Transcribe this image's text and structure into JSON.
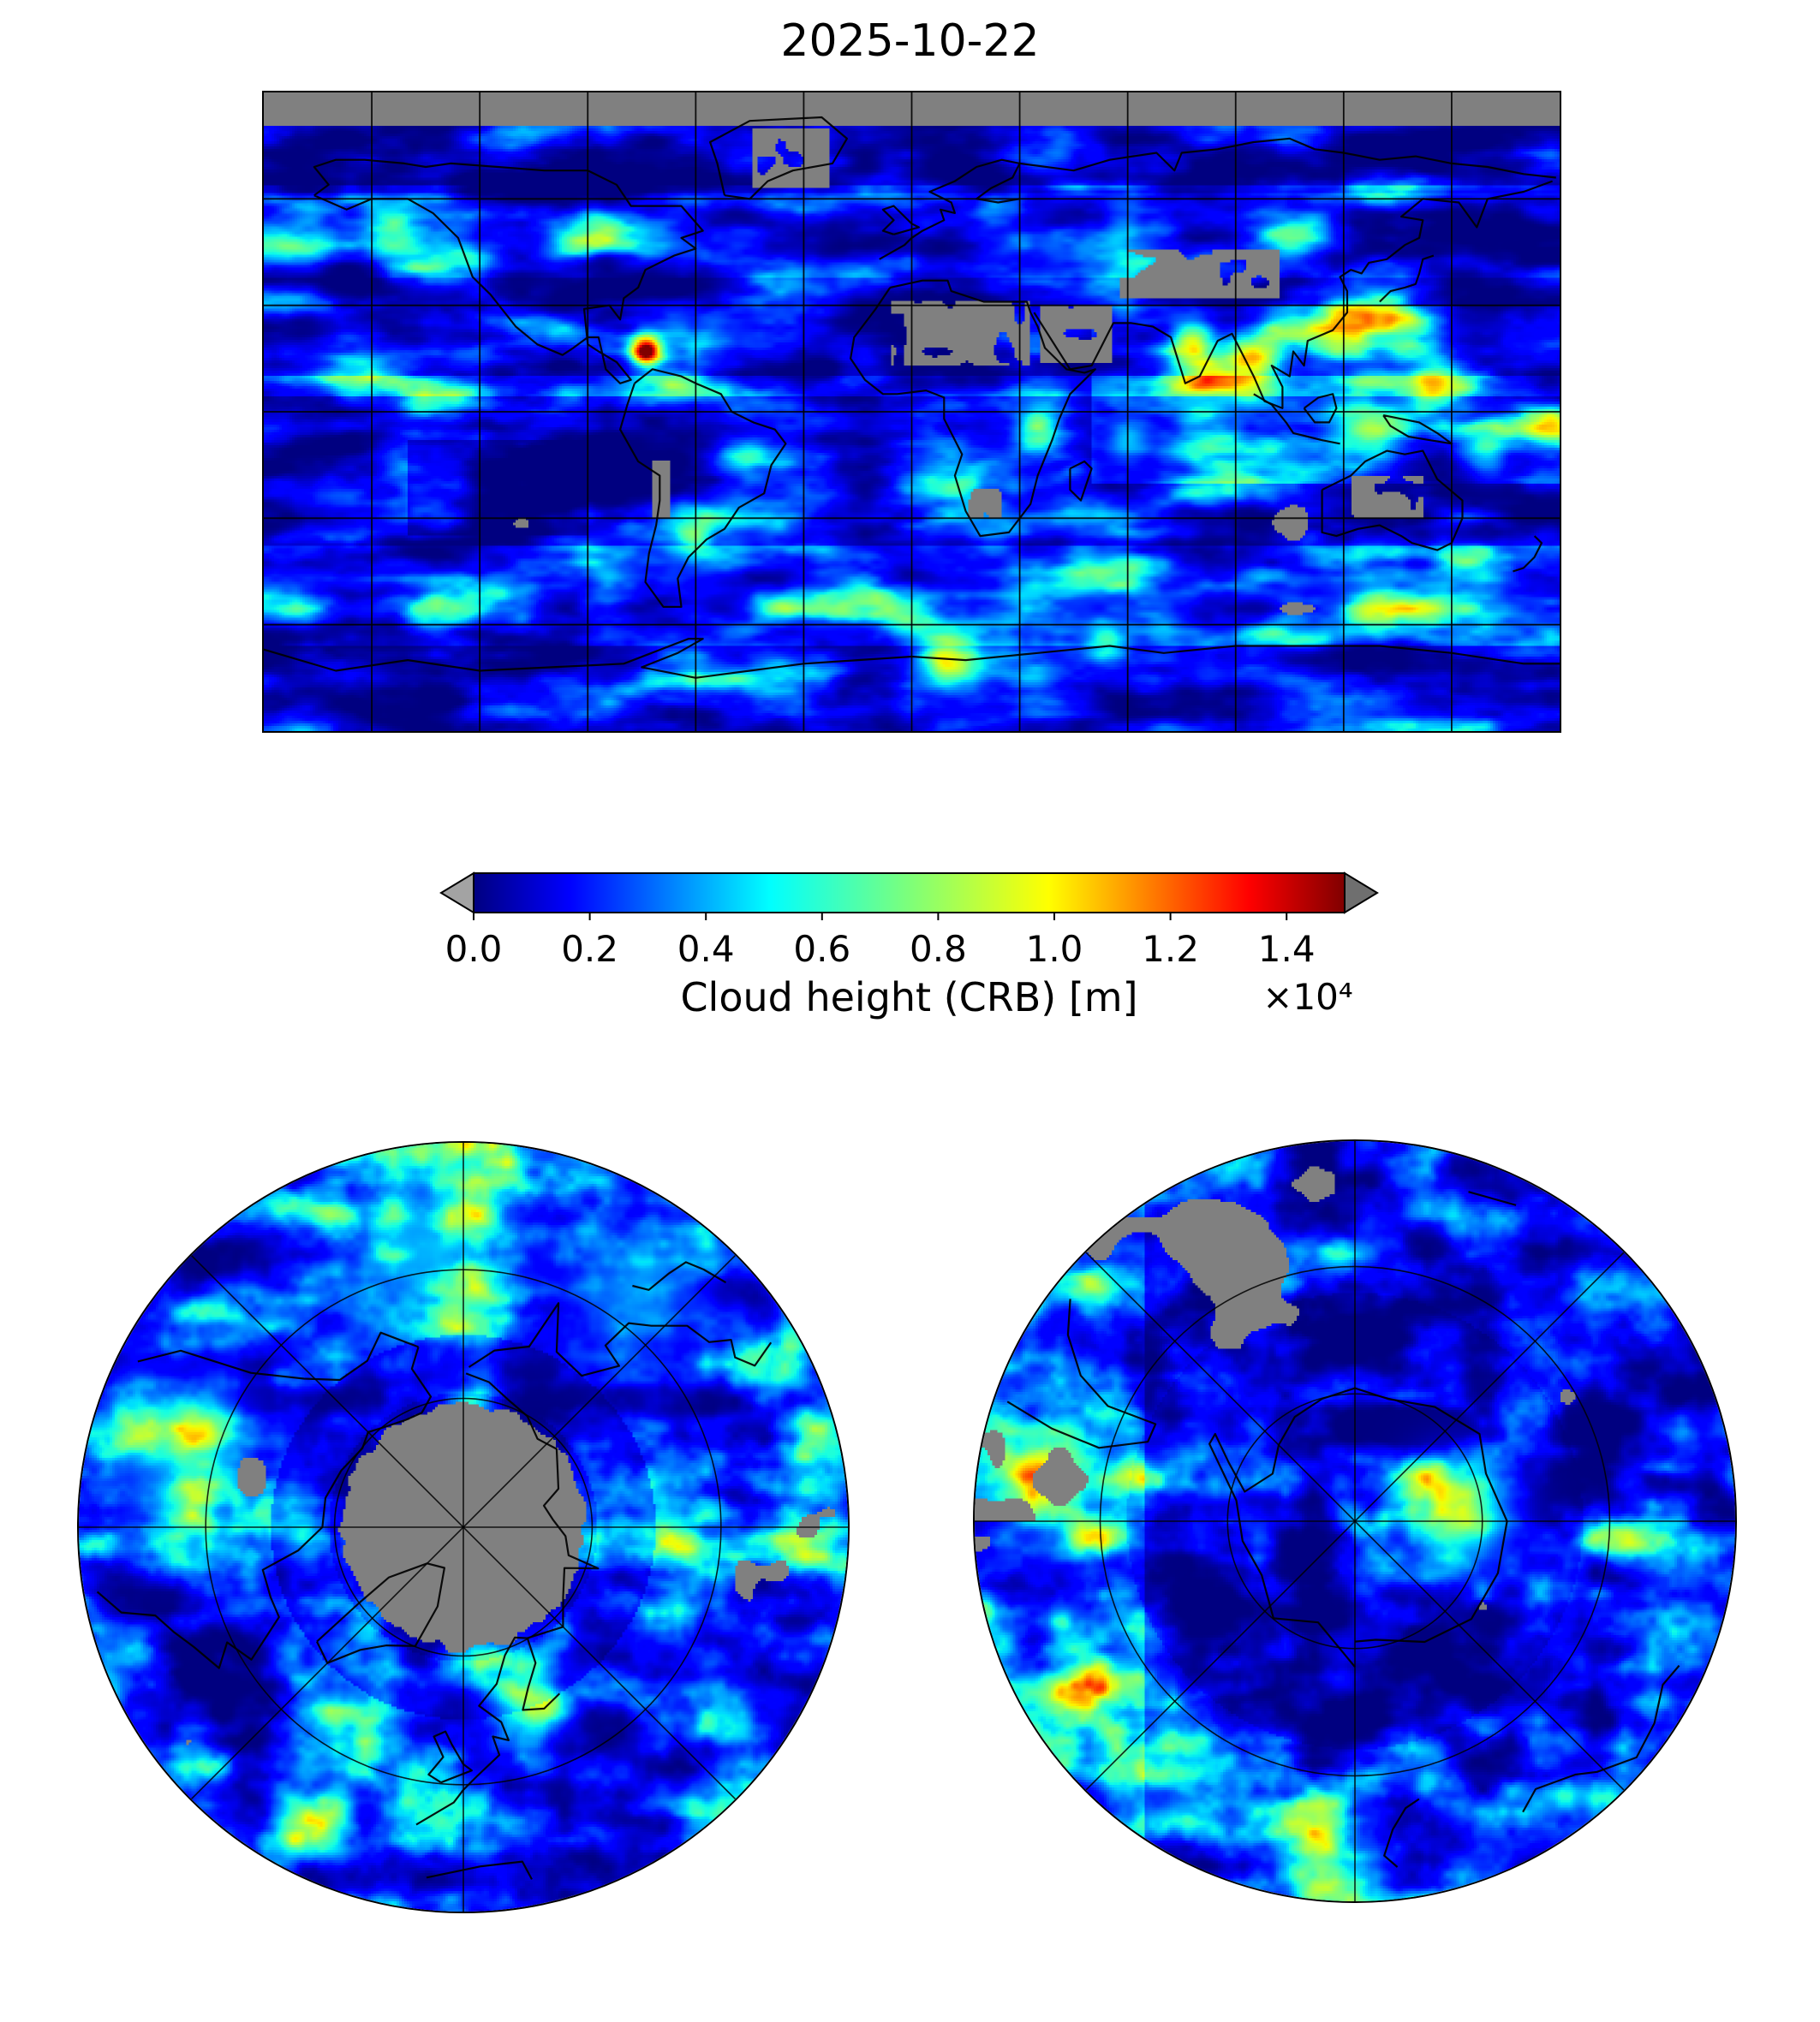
{
  "figure": {
    "title": "2025-10-22",
    "colorbar": {
      "label": "Cloud height (CRB) [m]",
      "offset_text": "×10⁴",
      "ticks": [
        "0.0",
        "0.2",
        "0.4",
        "0.6",
        "0.8",
        "1.0",
        "1.2",
        "1.4"
      ],
      "tick_values": [
        0.0,
        0.2,
        0.4,
        0.6,
        0.8,
        1.0,
        1.2,
        1.4
      ],
      "bar_max": 1.5,
      "colormap": "jet",
      "under_color": "#a3a3a3",
      "over_color": "#6f6f6f",
      "gradient_stops": [
        [
          0,
          "#000080"
        ],
        [
          0.11,
          "#0000ff"
        ],
        [
          0.34,
          "#00ffff"
        ],
        [
          0.5,
          "#7dff7a"
        ],
        [
          0.66,
          "#ffff00"
        ],
        [
          0.89,
          "#ff0000"
        ],
        [
          1,
          "#800000"
        ]
      ]
    }
  },
  "chart_data": {
    "type": "heatmap",
    "title": "2025-10-22",
    "variable": "Cloud height (CRB) [m]",
    "colormap": "jet",
    "colorbar_ticks": [
      0.0,
      0.2,
      0.4,
      0.6,
      0.8,
      1.0,
      1.2,
      1.4
    ],
    "scale_multiplier": 10000,
    "value_range_m": [
      0,
      15000
    ],
    "missing_data_color": "#808080",
    "legend_position": "below-global-map",
    "panels": [
      {
        "name": "global",
        "projection": "equirectangular",
        "lon_range": [
          -180,
          180
        ],
        "lat_range": [
          -90,
          90
        ],
        "gridline_spacing_deg": 30,
        "summary": "mostly 0–3000 m (dark blue) over oceans; convective bands 5000–12000 m (cyan/green/yellow) in tropics and storm tracks; isolated storms to ~15000 m (red); gray = missing data over deserts and poleward of ~80N"
      },
      {
        "name": "north-polar",
        "projection": "polar-stereographic-north",
        "lat_limit_deg": 30,
        "graticule": "45° meridians, parallels at ~1/3 and ~2/3 radius",
        "summary": "gray no-data disc around pole (~80–90N); blue cloud field with cyan/green storm streaks and scattered gray gaps"
      },
      {
        "name": "south-polar",
        "projection": "polar-stereographic-south",
        "lat_limit_deg": -30,
        "graticule": "45° meridians, parallels at ~1/3 and ~2/3 radius",
        "summary": "light blue/cyan cloud over Antarctica with yellow-green maximum east of pole; bright band at left limb; scattered gray gaps near edge"
      }
    ]
  },
  "layout_colors": {
    "background": "#ffffff",
    "map_border": "#000000",
    "coastline": "#000000",
    "grid": "#000000"
  }
}
